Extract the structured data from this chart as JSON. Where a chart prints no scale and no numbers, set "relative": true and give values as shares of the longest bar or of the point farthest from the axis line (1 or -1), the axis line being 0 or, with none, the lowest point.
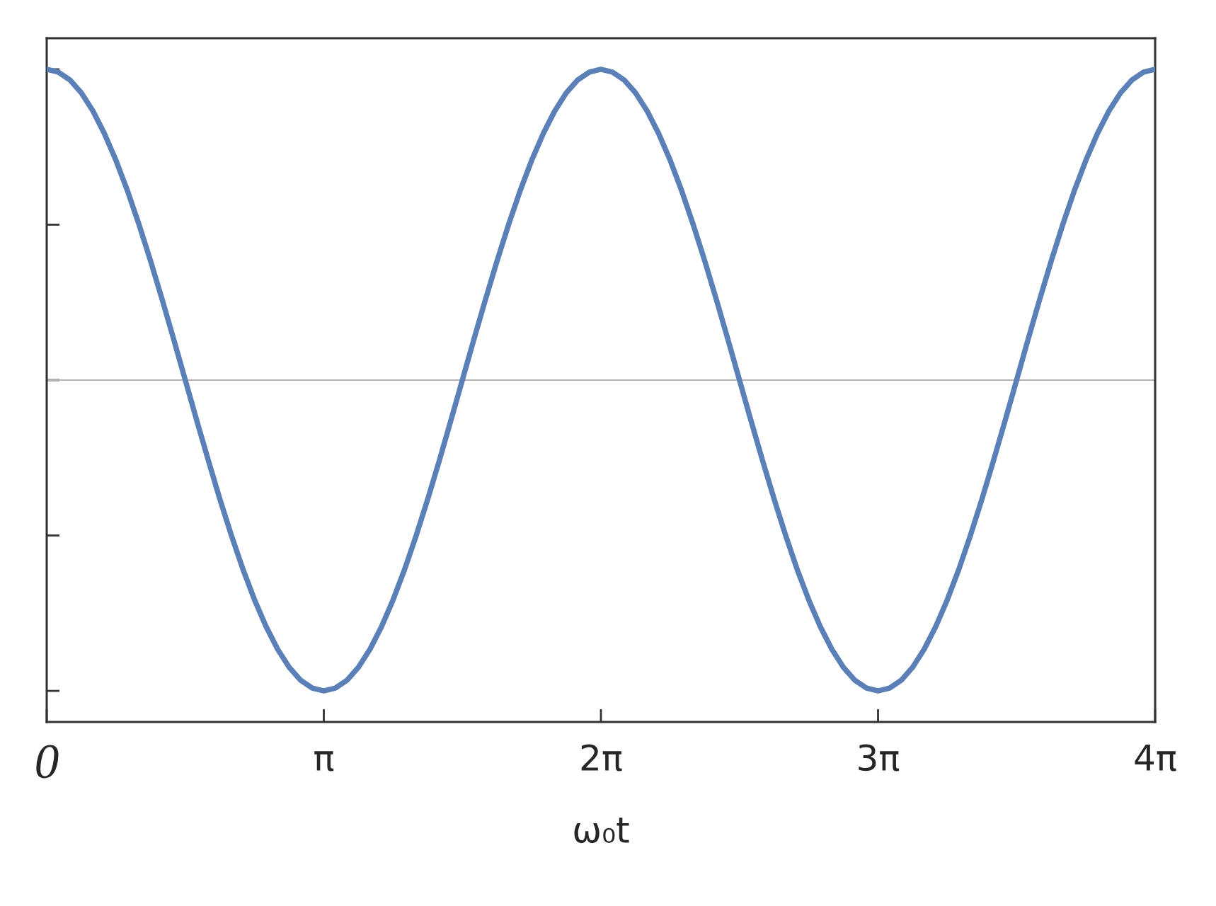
{
  "chart_data": {
    "type": "line",
    "relative": true,
    "xlabel": "ω₀t",
    "x": [
      0,
      0.131,
      0.262,
      0.393,
      0.524,
      0.654,
      0.785,
      0.916,
      1.047,
      1.178,
      1.309,
      1.44,
      1.571,
      1.702,
      1.833,
      1.963,
      2.094,
      2.225,
      2.356,
      2.487,
      2.618,
      2.749,
      2.88,
      3.011,
      3.142,
      3.272,
      3.403,
      3.534,
      3.665,
      3.796,
      3.927,
      4.058,
      4.189,
      4.32,
      4.451,
      4.581,
      4.712,
      4.843,
      4.974,
      5.105,
      5.236,
      5.367,
      5.498,
      5.629,
      5.76,
      5.89,
      6.021,
      6.152,
      6.283,
      6.414,
      6.545,
      6.676,
      6.807,
      6.938,
      7.069,
      7.199,
      7.33,
      7.461,
      7.592,
      7.723,
      7.854,
      7.985,
      8.116,
      8.247,
      8.378,
      8.508,
      8.639,
      8.77,
      8.901,
      9.032,
      9.163,
      9.294,
      9.425,
      9.556,
      9.687,
      9.817,
      9.948,
      10.079,
      10.21,
      10.341,
      10.472,
      10.603,
      10.734,
      10.865,
      10.996,
      11.126,
      11.257,
      11.388,
      11.519,
      11.65,
      11.781,
      11.912,
      12.043,
      12.174,
      12.305,
      12.435,
      12.566
    ],
    "series": [
      {
        "color": "#5b80b8",
        "values": [
          1,
          0.991,
          0.966,
          0.924,
          0.866,
          0.793,
          0.707,
          0.609,
          0.5,
          0.383,
          0.259,
          0.131,
          0,
          -0.131,
          -0.259,
          -0.383,
          -0.5,
          -0.609,
          -0.707,
          -0.793,
          -0.866,
          -0.924,
          -0.966,
          -0.991,
          -1,
          -0.991,
          -0.966,
          -0.924,
          -0.866,
          -0.793,
          -0.707,
          -0.609,
          -0.5,
          -0.383,
          -0.259,
          -0.131,
          0,
          0.131,
          0.259,
          0.383,
          0.5,
          0.609,
          0.707,
          0.793,
          0.866,
          0.924,
          0.966,
          0.991,
          1,
          0.991,
          0.966,
          0.924,
          0.866,
          0.793,
          0.707,
          0.609,
          0.5,
          0.383,
          0.259,
          0.131,
          0,
          -0.131,
          -0.259,
          -0.383,
          -0.5,
          -0.609,
          -0.707,
          -0.793,
          -0.866,
          -0.924,
          -0.966,
          -0.991,
          -1,
          -0.991,
          -0.966,
          -0.924,
          -0.866,
          -0.793,
          -0.707,
          -0.609,
          -0.5,
          -0.383,
          -0.259,
          -0.131,
          0,
          0.131,
          0.259,
          0.383,
          0.5,
          0.609,
          0.707,
          0.793,
          0.866,
          0.924,
          0.966,
          0.991,
          1
        ]
      }
    ],
    "xlim": [
      0,
      12.5664
    ],
    "xticks": [
      0,
      {
        "value": 3.1416,
        "label": "π"
      },
      {
        "value": 6.2832,
        "label": "2π"
      },
      {
        "value": 9.4248,
        "label": "3π"
      },
      {
        "value": 12.5664,
        "label": "4π"
      }
    ],
    "ref_lines": [
      {
        "axis": "y",
        "value": 0,
        "color": "#b3b3b3"
      }
    ],
    "tick_labels": "x"
  }
}
